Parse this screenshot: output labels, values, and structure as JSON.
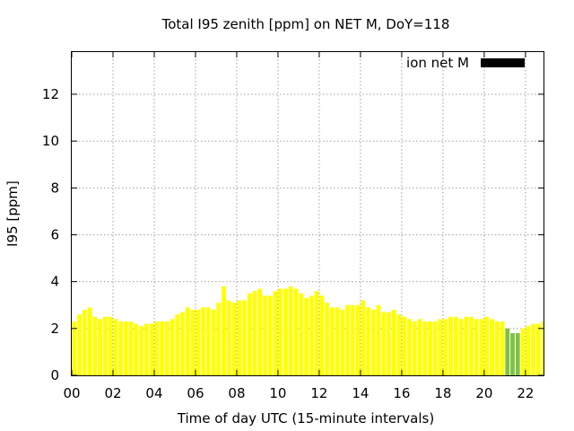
{
  "chart_data": {
    "type": "bar",
    "title": "Total I95 zenith [ppm] on NET M, DoY=118",
    "xlabel": "Time of day UTC (15-minute intervals)",
    "ylabel": "I95 [ppm]",
    "xlim": [
      0,
      22.875
    ],
    "ylim": [
      0,
      13.8
    ],
    "xticks": [
      "00",
      "02",
      "04",
      "06",
      "08",
      "10",
      "12",
      "14",
      "16",
      "18",
      "20",
      "22"
    ],
    "xtick_values": [
      0,
      2,
      4,
      6,
      8,
      10,
      12,
      14,
      16,
      18,
      20,
      22
    ],
    "yticks": [
      "0",
      "2",
      "4",
      "6",
      "8",
      "10",
      "12"
    ],
    "ytick_values": [
      0,
      2,
      4,
      6,
      8,
      10,
      12
    ],
    "grid": true,
    "legend": {
      "label": "ion net M",
      "color": "#000000",
      "placement": "top-right"
    },
    "bar_width_hours": 0.25,
    "colors": {
      "default": "#ffff00",
      "low": "#7dc242"
    },
    "series": [
      {
        "name": "ion net M",
        "x": [
          0,
          0.25,
          0.5,
          0.75,
          1,
          1.25,
          1.5,
          1.75,
          2,
          2.25,
          2.5,
          2.75,
          3,
          3.25,
          3.5,
          3.75,
          4,
          4.25,
          4.5,
          4.75,
          5,
          5.25,
          5.5,
          5.75,
          6,
          6.25,
          6.5,
          6.75,
          7,
          7.25,
          7.5,
          7.75,
          8,
          8.25,
          8.5,
          8.75,
          9,
          9.25,
          9.5,
          9.75,
          10,
          10.25,
          10.5,
          10.75,
          11,
          11.25,
          11.5,
          11.75,
          12,
          12.25,
          12.5,
          12.75,
          13,
          13.25,
          13.5,
          13.75,
          14,
          14.25,
          14.5,
          14.75,
          15,
          15.25,
          15.5,
          15.75,
          16,
          16.25,
          16.5,
          16.75,
          17,
          17.25,
          17.5,
          17.75,
          18,
          18.25,
          18.5,
          18.75,
          19,
          19.25,
          19.5,
          19.75,
          20,
          20.25,
          20.5,
          20.75,
          21,
          21.25,
          21.5,
          21.75,
          22,
          22.25,
          22.5,
          22.75
        ],
        "values": [
          2.3,
          2.6,
          2.8,
          2.9,
          2.5,
          2.4,
          2.5,
          2.5,
          2.4,
          2.3,
          2.3,
          2.3,
          2.2,
          2.1,
          2.2,
          2.2,
          2.3,
          2.3,
          2.3,
          2.4,
          2.6,
          2.7,
          2.9,
          2.8,
          2.8,
          2.9,
          2.9,
          2.8,
          3.1,
          3.8,
          3.2,
          3.1,
          3.2,
          3.2,
          3.5,
          3.6,
          3.7,
          3.4,
          3.4,
          3.6,
          3.7,
          3.7,
          3.8,
          3.7,
          3.5,
          3.3,
          3.4,
          3.6,
          3.4,
          3.1,
          2.9,
          2.9,
          2.8,
          3.0,
          3.0,
          3.0,
          3.2,
          2.9,
          2.8,
          3.0,
          2.7,
          2.7,
          2.8,
          2.6,
          2.5,
          2.4,
          2.3,
          2.4,
          2.3,
          2.3,
          2.3,
          2.4,
          2.4,
          2.5,
          2.5,
          2.4,
          2.5,
          2.5,
          2.4,
          2.4,
          2.5,
          2.4,
          2.3,
          2.3,
          2.0,
          1.8,
          1.8,
          2.0,
          2.1,
          2.2,
          2.2,
          2.3
        ],
        "colors": [
          "#ffff00",
          "#ffff00",
          "#ffff00",
          "#ffff00",
          "#ffff00",
          "#ffff00",
          "#ffff00",
          "#ffff00",
          "#ffff00",
          "#ffff00",
          "#ffff00",
          "#ffff00",
          "#ffff00",
          "#ffff00",
          "#ffff00",
          "#ffff00",
          "#ffff00",
          "#ffff00",
          "#ffff00",
          "#ffff00",
          "#ffff00",
          "#ffff00",
          "#ffff00",
          "#ffff00",
          "#ffff00",
          "#ffff00",
          "#ffff00",
          "#ffff00",
          "#ffff00",
          "#ffff00",
          "#ffff00",
          "#ffff00",
          "#ffff00",
          "#ffff00",
          "#ffff00",
          "#ffff00",
          "#ffff00",
          "#ffff00",
          "#ffff00",
          "#ffff00",
          "#ffff00",
          "#ffff00",
          "#ffff00",
          "#ffff00",
          "#ffff00",
          "#ffff00",
          "#ffff00",
          "#ffff00",
          "#ffff00",
          "#ffff00",
          "#ffff00",
          "#ffff00",
          "#ffff00",
          "#ffff00",
          "#ffff00",
          "#ffff00",
          "#ffff00",
          "#ffff00",
          "#ffff00",
          "#ffff00",
          "#ffff00",
          "#ffff00",
          "#ffff00",
          "#ffff00",
          "#ffff00",
          "#ffff00",
          "#ffff00",
          "#ffff00",
          "#ffff00",
          "#ffff00",
          "#ffff00",
          "#ffff00",
          "#ffff00",
          "#ffff00",
          "#ffff00",
          "#ffff00",
          "#ffff00",
          "#ffff00",
          "#ffff00",
          "#ffff00",
          "#ffff00",
          "#ffff00",
          "#ffff00",
          "#ffff00",
          "#7dc242",
          "#7dc242",
          "#7dc242",
          "#ffff00",
          "#ffff00",
          "#ffff00",
          "#ffff00",
          "#ffff00"
        ]
      }
    ]
  }
}
